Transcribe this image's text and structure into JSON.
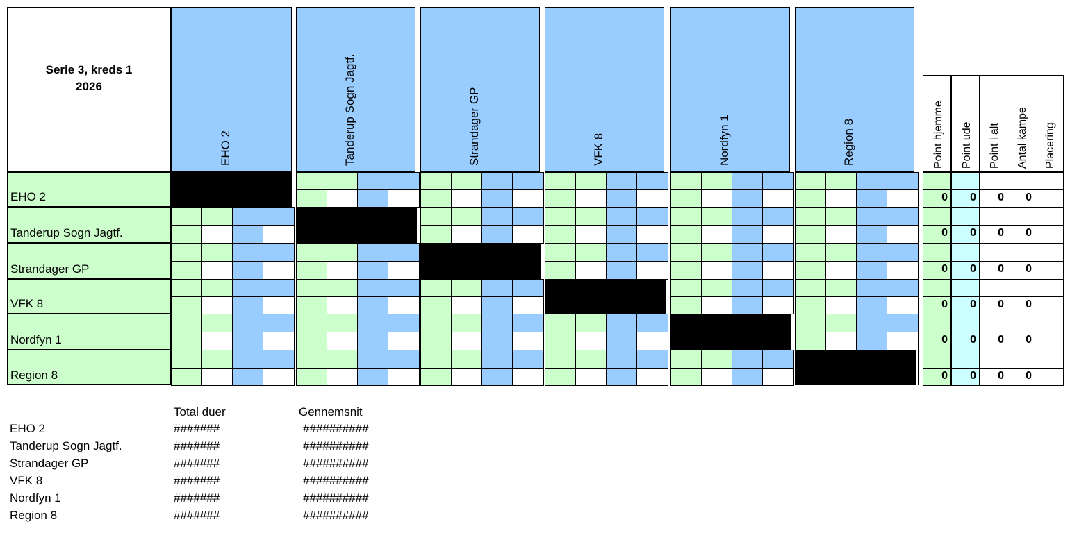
{
  "title_line1": "Serie 3, kreds 1",
  "title_line2": "2026",
  "teams": [
    "EHO 2",
    "Tanderup Sogn Jagtf.",
    "Strandager GP",
    "VFK 8",
    "Nordfyn 1",
    "Region 8"
  ],
  "stat_headers": [
    "Point hjemme",
    "Point ude",
    "Point i alt",
    "Antal kampe",
    "Placering"
  ],
  "stat_values": [
    [
      "0",
      "0",
      "0",
      "0",
      ""
    ],
    [
      "0",
      "0",
      "0",
      "0",
      ""
    ],
    [
      "0",
      "0",
      "0",
      "0",
      ""
    ],
    [
      "0",
      "0",
      "0",
      "0",
      ""
    ],
    [
      "0",
      "0",
      "0",
      "0",
      ""
    ],
    [
      "0",
      "0",
      "0",
      "0",
      ""
    ]
  ],
  "summary": {
    "col1_header": "Total duer",
    "col2_header": "Gennemsnit",
    "rows": [
      {
        "team": "EHO 2",
        "total": "#######",
        "avg": "##########"
      },
      {
        "team": "Tanderup Sogn Jagtf.",
        "total": "#######",
        "avg": "##########"
      },
      {
        "team": "Strandager GP",
        "total": "#######",
        "avg": "##########"
      },
      {
        "team": "VFK 8",
        "total": "#######",
        "avg": "##########"
      },
      {
        "team": "Nordfyn 1",
        "total": "#######",
        "avg": "##########"
      },
      {
        "team": "Region 8",
        "total": "#######",
        "avg": "##########"
      }
    ]
  },
  "colors": {
    "green": "#ccffcc",
    "blue": "#99ccff",
    "light_cyan": "#ccffff",
    "black": "#000000"
  }
}
